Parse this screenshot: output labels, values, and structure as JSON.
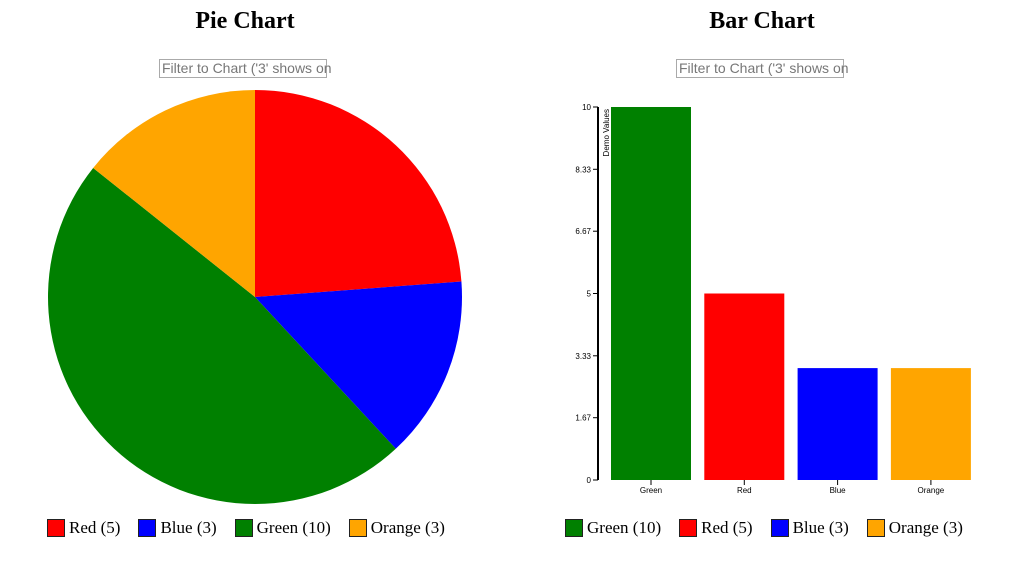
{
  "chart_data": [
    {
      "type": "pie",
      "title": "Pie Chart",
      "filter_placeholder": "Filter to Chart ('3' shows on",
      "categories": [
        "Red",
        "Blue",
        "Green",
        "Orange"
      ],
      "values": [
        5,
        3,
        10,
        3
      ],
      "colors": [
        "#ff0000",
        "#0000ff",
        "#008000",
        "#ffa500"
      ],
      "legend": [
        "Red (5)",
        "Blue (3)",
        "Green (10)",
        "Orange (3)"
      ]
    },
    {
      "type": "bar",
      "title": "Bar Chart",
      "filter_placeholder": "Filter to Chart ('3' shows on",
      "categories": [
        "Green",
        "Red",
        "Blue",
        "Orange"
      ],
      "values": [
        10,
        5,
        3,
        3
      ],
      "colors": [
        "#008000",
        "#ff0000",
        "#0000ff",
        "#ffa500"
      ],
      "ylabel": "Demo Values",
      "ylim": [
        0,
        10
      ],
      "yticks": [
        "0",
        "1.67",
        "3.33",
        "5",
        "6.67",
        "8.33",
        "10"
      ],
      "legend": [
        "Green (10)",
        "Red (5)",
        "Blue (3)",
        "Orange (3)"
      ]
    }
  ]
}
